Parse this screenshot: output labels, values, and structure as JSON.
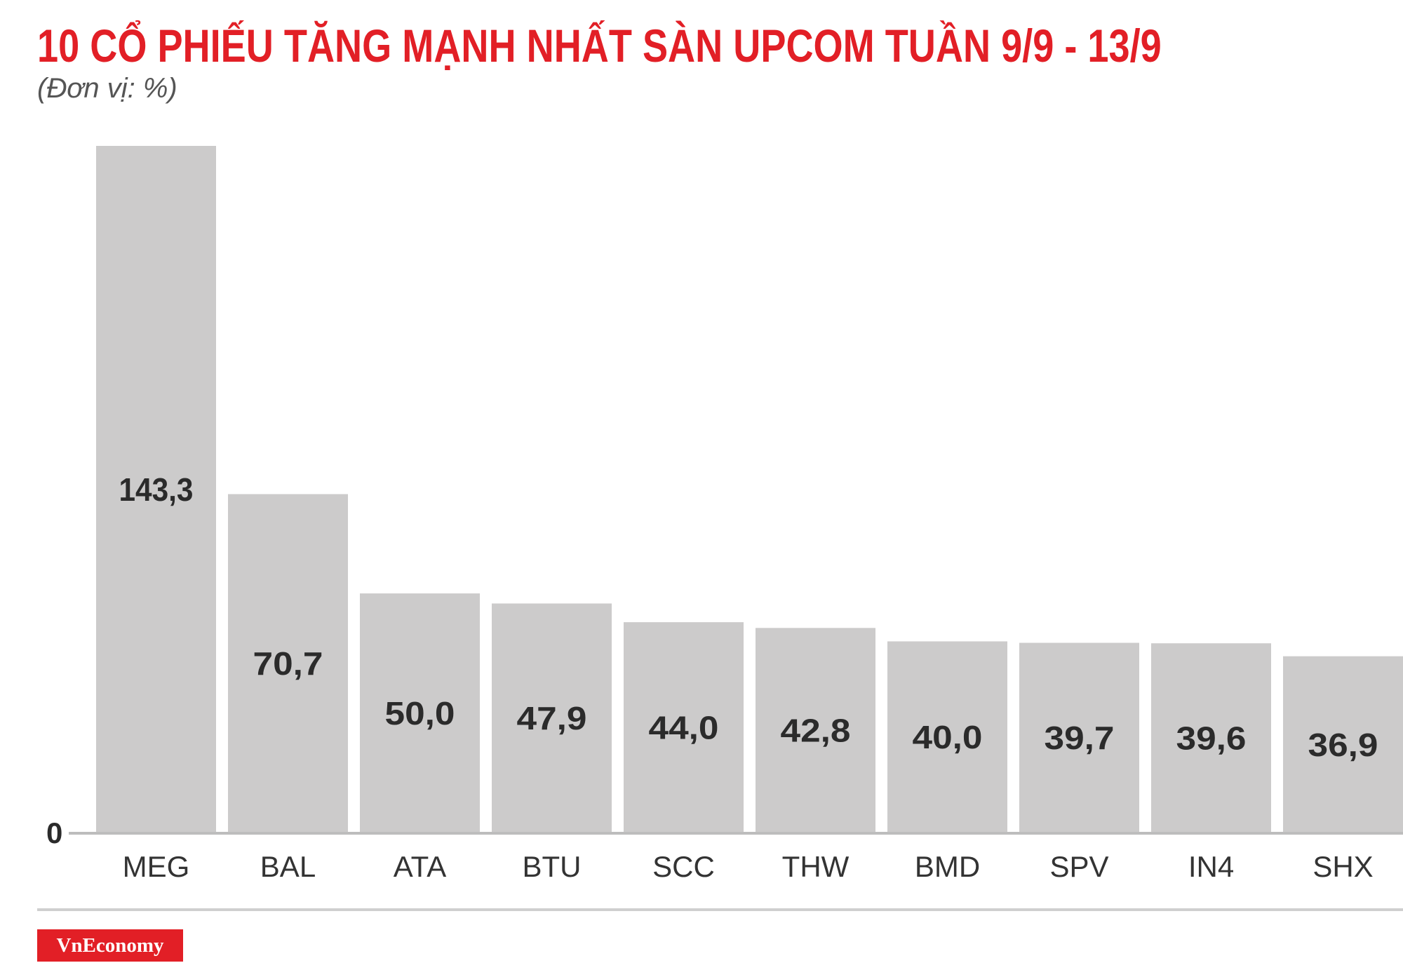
{
  "chart_data": {
    "type": "bar",
    "title": "10 CỔ PHIẾU TĂNG MẠNH NHẤT SÀN UPCOM TUẦN 9/9 - 13/9",
    "unit_label": "(Đơn vị: %)",
    "categories": [
      "MEG",
      "BAL",
      "ATA",
      "BTU",
      "SCC",
      "THW",
      "BMD",
      "SPV",
      "IN4",
      "SHX"
    ],
    "values": [
      143.3,
      70.7,
      50.0,
      47.9,
      44.0,
      42.8,
      40.0,
      39.7,
      39.6,
      36.9
    ],
    "value_labels": [
      "143,3",
      "70,7",
      "50,0",
      "47,9",
      "44,0",
      "42,8",
      "40,0",
      "39,7",
      "39,6",
      "36,9"
    ],
    "y_tick_label": "0",
    "ylim": [
      0,
      143.3
    ],
    "grid": false,
    "legend": "none",
    "colors": {
      "bar": "#cccbcb",
      "title": "#e21f26",
      "logo_bg": "#e21f26"
    }
  },
  "branding": {
    "logo_text": "VnEconomy"
  }
}
